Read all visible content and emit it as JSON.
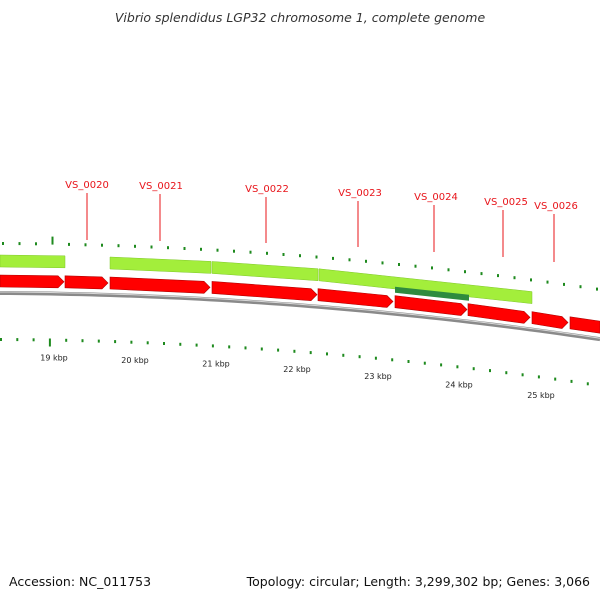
{
  "title": "Vibrio splendidus LGP32 chromosome 1, complete genome",
  "footer": {
    "accession": "Accession: NC_011753",
    "stats": "Topology: circular; Length: 3,299,302 bp; Genes: 3,066"
  },
  "colors": {
    "cds_red": "#ff0000",
    "gene_green": "#a3ee3b",
    "highlight_green": "#2e8b3e",
    "tick_green": "#1e8a1e",
    "backbone_gray": "#8a8a8a",
    "label_red": "#e8141a"
  },
  "genes": [
    {
      "label": "VS_0020"
    },
    {
      "label": "VS_0021"
    },
    {
      "label": "VS_0022"
    },
    {
      "label": "VS_0023"
    },
    {
      "label": "VS_0024"
    },
    {
      "label": "VS_0025"
    },
    {
      "label": "VS_0026"
    }
  ],
  "scale_labels": [
    "19 kbp",
    "20 kbp",
    "21 kbp",
    "22 kbp",
    "23 kbp",
    "24 kbp",
    "25 kbp"
  ]
}
